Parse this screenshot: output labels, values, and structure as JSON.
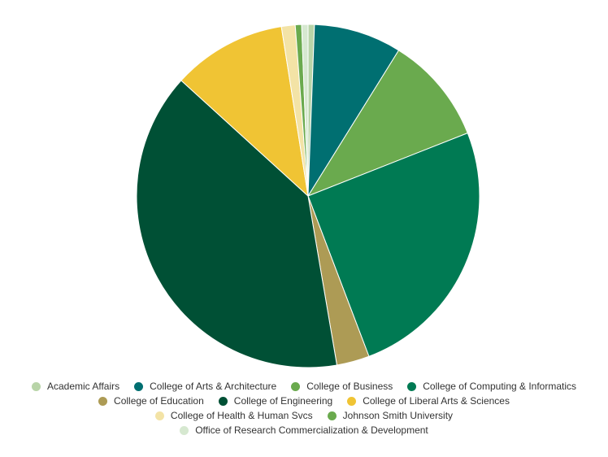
{
  "chart_data": {
    "type": "pie",
    "title": "",
    "start_angle_deg": 0,
    "direction": "clockwise",
    "legend_placement": "bottom",
    "legend_rows": [
      [
        0,
        1,
        2,
        3
      ],
      [
        4,
        5,
        6
      ],
      [
        7,
        8
      ],
      [
        9
      ]
    ],
    "slices": [
      {
        "label": "Academic Affairs",
        "value": 0.6,
        "color": "#b8d4a8"
      },
      {
        "label": "College of Arts & Architecture",
        "value": 8.3,
        "color": "#006f71"
      },
      {
        "label": "College of Business",
        "value": 10.2,
        "color": "#6aaa4e"
      },
      {
        "label": "College of Computing & Informatics",
        "value": 25.3,
        "color": "#007a53"
      },
      {
        "label": "College of Education",
        "value": 3.1,
        "color": "#ad9b55"
      },
      {
        "label": "College of Engineering",
        "value": 39.6,
        "color": "#005035"
      },
      {
        "label": "College of Liberal Arts & Sciences",
        "value": 10.8,
        "color": "#f0c434"
      },
      {
        "label": "College of Health & Human Svcs",
        "value": 1.3,
        "color": "#f3e3a6"
      },
      {
        "label": "Johnson Smith University",
        "value": 0.6,
        "color": "#6aaa4e"
      },
      {
        "label": "Office of Research Commercialization & Development",
        "value": 0.6,
        "color": "#d6e8d0"
      }
    ]
  }
}
